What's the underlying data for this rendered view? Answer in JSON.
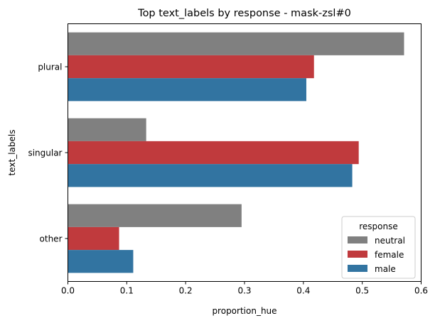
{
  "chart_data": {
    "type": "bar",
    "orientation": "horizontal",
    "title": "Top  text_labels by response - mask-zsl#0",
    "xlabel": "proportion_hue",
    "ylabel": "text_labels",
    "xlim": [
      0,
      0.6
    ],
    "xticks": [
      "0.0",
      "0.1",
      "0.2",
      "0.3",
      "0.4",
      "0.5",
      "0.6"
    ],
    "categories": [
      "plural",
      "singular",
      "other"
    ],
    "series": [
      {
        "name": "neutral",
        "color": "#808080",
        "values": [
          0.571,
          0.133,
          0.295
        ]
      },
      {
        "name": "female",
        "color": "#c03a3d",
        "values": [
          0.418,
          0.494,
          0.087
        ]
      },
      {
        "name": "male",
        "color": "#3274a1",
        "values": [
          0.405,
          0.483,
          0.111
        ]
      }
    ],
    "grid": false,
    "legend": {
      "title": "response",
      "placement": "lower right"
    }
  }
}
